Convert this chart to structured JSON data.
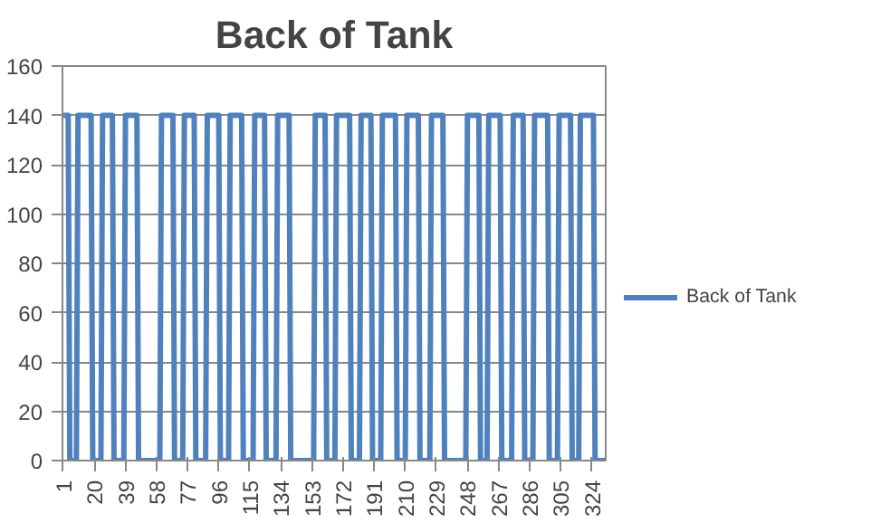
{
  "chart_data": {
    "type": "line",
    "title": "Back of Tank",
    "x": [
      1,
      4,
      5,
      9,
      10,
      18,
      19,
      24,
      25,
      31,
      32,
      38,
      39,
      46,
      47,
      60,
      61,
      68,
      69,
      74,
      75,
      81,
      82,
      88,
      89,
      96,
      97,
      102,
      103,
      110,
      111,
      117,
      118,
      124,
      125,
      131,
      132,
      139,
      140,
      154,
      155,
      161,
      162,
      167,
      168,
      176,
      177,
      182,
      183,
      189,
      190,
      195,
      196,
      204,
      205,
      210,
      211,
      218,
      219,
      225,
      226,
      233,
      234,
      247,
      248,
      255,
      256,
      260,
      261,
      268,
      269,
      275,
      276,
      282,
      283,
      288,
      289,
      297,
      298,
      303,
      304,
      311,
      312,
      316,
      317,
      325,
      326,
      332
    ],
    "series": [
      {
        "name": "Back of Tank",
        "color": "#4f81bd",
        "values": [
          140,
          140,
          0,
          0,
          140,
          140,
          0,
          0,
          140,
          140,
          0,
          0,
          140,
          140,
          0,
          0,
          140,
          140,
          0,
          0,
          140,
          140,
          0,
          0,
          140,
          140,
          0,
          0,
          140,
          140,
          0,
          0,
          140,
          140,
          0,
          0,
          140,
          140,
          0,
          0,
          140,
          140,
          0,
          0,
          140,
          140,
          0,
          0,
          140,
          140,
          0,
          0,
          140,
          140,
          0,
          0,
          140,
          140,
          0,
          0,
          140,
          140,
          0,
          0,
          140,
          140,
          0,
          0,
          140,
          140,
          0,
          0,
          140,
          140,
          0,
          0,
          140,
          140,
          0,
          0,
          140,
          140,
          0,
          0,
          140,
          140,
          0,
          0
        ]
      }
    ],
    "xlim": [
      0.5,
      332.5
    ],
    "xticks": [
      1,
      20,
      39,
      58,
      77,
      96,
      115,
      134,
      153,
      172,
      191,
      210,
      229,
      248,
      267,
      286,
      305,
      324
    ],
    "ylim": [
      0,
      160
    ],
    "yticks": [
      0,
      20,
      40,
      60,
      80,
      100,
      120,
      140,
      160
    ],
    "grid": "y",
    "legend": "right",
    "marker": "none",
    "line_style": "solid"
  }
}
